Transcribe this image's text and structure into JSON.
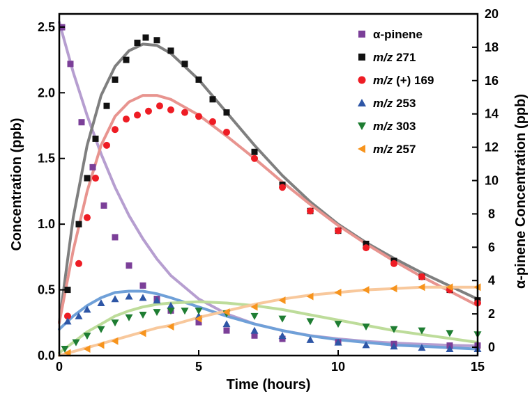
{
  "chart_data": {
    "type": "scatter",
    "xlabel": "Time (hours)",
    "ylabel": "Concentration (ppb)",
    "ylabel_right": "α-pinene Concentration (ppb)",
    "xlim": [
      0,
      15
    ],
    "ylim": [
      0,
      2.6
    ],
    "ylim_right": [
      -0.5,
      20
    ],
    "x_ticks": [
      0,
      5,
      10,
      15
    ],
    "x_tick_labels": [
      "0",
      "5",
      "10",
      "15"
    ],
    "y_ticks": [
      0,
      0.5,
      1.0,
      1.5,
      2.0,
      2.5
    ],
    "y_tick_labels": [
      "0.0",
      "0.5",
      "1.0",
      "1.5",
      "2.0",
      "2.5"
    ],
    "y_right_ticks": [
      0,
      2,
      4,
      6,
      8,
      10,
      12,
      14,
      16,
      18,
      20
    ],
    "y_right_tick_labels": [
      "0",
      "2",
      "4",
      "6",
      "8",
      "10",
      "12",
      "14",
      "16",
      "18",
      "20"
    ],
    "grid": false,
    "legend_position": "top-right",
    "series": [
      {
        "name": "α-pinene",
        "legend_label": "α-pinene",
        "axis": "right",
        "marker": "square",
        "color": "#7b3f98",
        "fit_color": "#b69ed0",
        "x": [
          0.1,
          0.4,
          0.8,
          1.2,
          1.6,
          2.0,
          2.5,
          3.0,
          3.5,
          4.0,
          5.0,
          6.0,
          7.0,
          8.0,
          10.0,
          12.0,
          14.0,
          15.0
        ],
        "y": [
          19.2,
          17.0,
          13.5,
          10.8,
          8.5,
          6.6,
          4.9,
          3.7,
          2.9,
          2.2,
          1.5,
          1.0,
          0.7,
          0.5,
          0.3,
          0.2,
          0.1,
          0.1
        ],
        "fit_x": [
          0,
          0.5,
          1,
          1.5,
          2,
          2.5,
          3,
          3.5,
          4,
          5,
          6,
          7,
          8,
          9,
          10,
          11,
          12,
          13,
          14,
          15
        ],
        "fit_y": [
          19.5,
          16.5,
          13.9,
          11.6,
          9.6,
          7.9,
          6.5,
          5.3,
          4.3,
          2.9,
          2.0,
          1.4,
          1.0,
          0.7,
          0.5,
          0.35,
          0.25,
          0.18,
          0.12,
          0.08
        ]
      },
      {
        "name": "m/z 271",
        "legend_label": "271",
        "axis": "left",
        "marker": "square",
        "color": "#111111",
        "fit_color": "#7f7f7f",
        "x": [
          0.3,
          0.7,
          1.0,
          1.3,
          1.7,
          2.0,
          2.4,
          2.8,
          3.1,
          3.5,
          4.0,
          4.5,
          5.0,
          5.5,
          6.0,
          7.0,
          8.0,
          9.0,
          10.0,
          11.0,
          12.0,
          13.0,
          14.0,
          15.0
        ],
        "y": [
          0.5,
          1.0,
          1.35,
          1.65,
          1.9,
          2.1,
          2.25,
          2.38,
          2.42,
          2.4,
          2.32,
          2.22,
          2.1,
          1.95,
          1.85,
          1.55,
          1.3,
          1.1,
          0.95,
          0.85,
          0.72,
          0.6,
          0.5,
          0.42
        ],
        "fit_x": [
          0,
          0.5,
          1,
          1.5,
          2,
          2.5,
          3,
          3.5,
          4,
          5,
          6,
          7,
          8,
          9,
          10,
          11,
          12,
          13,
          14,
          15
        ],
        "fit_y": [
          0.25,
          1.05,
          1.6,
          1.98,
          2.2,
          2.32,
          2.37,
          2.36,
          2.3,
          2.1,
          1.85,
          1.6,
          1.37,
          1.17,
          1.0,
          0.86,
          0.74,
          0.63,
          0.53,
          0.43
        ]
      },
      {
        "name": "m/z (+) 169",
        "legend_label": "(+) 169",
        "axis": "left",
        "marker": "circle",
        "color": "#ee1c24",
        "fit_color": "#e8948f",
        "x": [
          0.3,
          0.7,
          1.0,
          1.3,
          1.7,
          2.0,
          2.4,
          2.8,
          3.2,
          3.6,
          4.0,
          4.5,
          5.0,
          5.5,
          6.0,
          7.0,
          8.0,
          9.0,
          10.0,
          11.0,
          12.0,
          13.0,
          14.0,
          15.0
        ],
        "y": [
          0.3,
          0.7,
          1.05,
          1.35,
          1.6,
          1.72,
          1.8,
          1.83,
          1.86,
          1.9,
          1.87,
          1.85,
          1.82,
          1.78,
          1.7,
          1.5,
          1.28,
          1.1,
          0.95,
          0.82,
          0.7,
          0.6,
          0.5,
          0.4
        ],
        "fit_x": [
          0,
          0.5,
          1,
          1.5,
          2,
          2.5,
          3,
          3.5,
          4,
          5,
          6,
          7,
          8,
          9,
          10,
          11,
          12,
          13,
          14,
          15
        ],
        "fit_y": [
          0.25,
          0.8,
          1.25,
          1.6,
          1.82,
          1.93,
          1.98,
          1.98,
          1.95,
          1.83,
          1.67,
          1.5,
          1.32,
          1.15,
          0.99,
          0.85,
          0.72,
          0.6,
          0.49,
          0.38
        ]
      },
      {
        "name": "m/z 253",
        "legend_label": "253",
        "axis": "left",
        "marker": "triangle-up",
        "color": "#2e56a6",
        "fit_color": "#6fa0d8",
        "x": [
          0.3,
          0.7,
          1.0,
          1.5,
          2.0,
          2.5,
          3.0,
          3.5,
          4.0,
          5.0,
          6.0,
          7.0,
          8.0,
          9.0,
          10.0,
          11.0,
          12.0,
          13.0,
          14.0,
          15.0
        ],
        "y": [
          0.26,
          0.3,
          0.35,
          0.4,
          0.43,
          0.45,
          0.44,
          0.42,
          0.38,
          0.3,
          0.24,
          0.19,
          0.15,
          0.12,
          0.1,
          0.08,
          0.07,
          0.06,
          0.05,
          0.05
        ],
        "fit_x": [
          0,
          0.5,
          1,
          1.5,
          2,
          2.5,
          3,
          3.5,
          4,
          5,
          6,
          7,
          8,
          9,
          10,
          11,
          12,
          13,
          14,
          15
        ],
        "fit_y": [
          0.2,
          0.3,
          0.38,
          0.44,
          0.48,
          0.49,
          0.49,
          0.47,
          0.44,
          0.37,
          0.3,
          0.24,
          0.19,
          0.15,
          0.12,
          0.1,
          0.08,
          0.07,
          0.06,
          0.05
        ]
      },
      {
        "name": "m/z 303",
        "legend_label": "303",
        "axis": "left",
        "marker": "triangle-down",
        "color": "#1e7d32",
        "fit_color": "#bddc9a",
        "x": [
          0.2,
          0.6,
          1.0,
          1.5,
          2.0,
          2.5,
          3.0,
          3.5,
          4.0,
          4.5,
          5.0,
          6.0,
          7.0,
          8.0,
          9.0,
          10.0,
          11.0,
          12.0,
          13.0,
          14.0,
          15.0
        ],
        "y": [
          0.05,
          0.1,
          0.15,
          0.2,
          0.25,
          0.29,
          0.31,
          0.33,
          0.34,
          0.34,
          0.34,
          0.32,
          0.3,
          0.28,
          0.26,
          0.24,
          0.22,
          0.2,
          0.19,
          0.17,
          0.16
        ],
        "fit_x": [
          0,
          0.5,
          1,
          1.5,
          2,
          2.5,
          3,
          3.5,
          4,
          5,
          6,
          7,
          8,
          9,
          10,
          11,
          12,
          13,
          14,
          15
        ],
        "fit_y": [
          0.02,
          0.1,
          0.18,
          0.24,
          0.3,
          0.34,
          0.37,
          0.39,
          0.4,
          0.41,
          0.4,
          0.38,
          0.35,
          0.31,
          0.27,
          0.23,
          0.19,
          0.16,
          0.13,
          0.1
        ]
      },
      {
        "name": "m/z 257",
        "legend_label": "257",
        "axis": "left",
        "marker": "triangle-left",
        "color": "#f7941d",
        "fit_color": "#f8c89c",
        "x": [
          0.3,
          1.0,
          1.5,
          2.0,
          3.0,
          4.0,
          5.0,
          6.0,
          7.0,
          8.0,
          9.0,
          10.0,
          11.0,
          12.0,
          13.0,
          14.0,
          15.0
        ],
        "y": [
          0.02,
          0.05,
          0.08,
          0.11,
          0.17,
          0.22,
          0.28,
          0.33,
          0.37,
          0.42,
          0.45,
          0.48,
          0.5,
          0.51,
          0.52,
          0.52,
          0.52
        ],
        "fit_x": [
          0,
          0.5,
          1,
          1.5,
          2,
          2.5,
          3,
          3.5,
          4,
          5,
          6,
          7,
          8,
          9,
          10,
          11,
          12,
          13,
          14,
          15
        ],
        "fit_y": [
          0,
          0.03,
          0.06,
          0.09,
          0.12,
          0.15,
          0.18,
          0.21,
          0.23,
          0.29,
          0.34,
          0.39,
          0.43,
          0.46,
          0.48,
          0.5,
          0.51,
          0.52,
          0.52,
          0.52
        ]
      }
    ],
    "legend": [
      {
        "prefix": "",
        "label": "α-pinene",
        "marker": "square",
        "color": "#7b3f98"
      },
      {
        "prefix": "m/z",
        "label": "271",
        "marker": "square",
        "color": "#111111"
      },
      {
        "prefix": "m/z",
        "label": "(+) 169",
        "marker": "circle",
        "color": "#ee1c24"
      },
      {
        "prefix": "m/z",
        "label": "253",
        "marker": "triangle-up",
        "color": "#2e56a6"
      },
      {
        "prefix": "m/z",
        "label": "303",
        "marker": "triangle-down",
        "color": "#1e7d32"
      },
      {
        "prefix": "m/z",
        "label": "257",
        "marker": "triangle-left",
        "color": "#f7941d"
      }
    ]
  }
}
